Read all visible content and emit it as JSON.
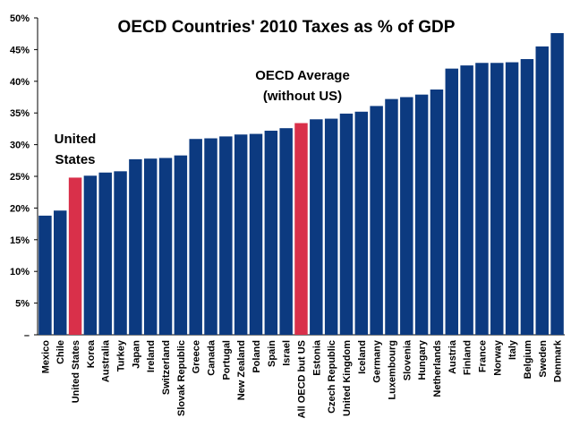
{
  "chart_data": {
    "type": "bar",
    "title": "OECD Countries' 2010 Taxes as % of GDP",
    "xlabel": "",
    "ylabel": "",
    "ylim": [
      0,
      50
    ],
    "y_ticks": [
      "–",
      "5%",
      "10%",
      "15%",
      "20%",
      "25%",
      "30%",
      "35%",
      "40%",
      "45%",
      "50%"
    ],
    "grid": false,
    "colors": {
      "default": "#0c3a80",
      "highlight": "#d9304a"
    },
    "highlighted": [
      "United States",
      "All OECD but US"
    ],
    "categories": [
      "Mexico",
      "Chile",
      "United States",
      "Korea",
      "Australia",
      "Turkey",
      "Japan",
      "Ireland",
      "Switzerland",
      "Slovak Republic",
      "Greece",
      "Canada",
      "Portugal",
      "New Zealand",
      "Poland",
      "Spain",
      "Israel",
      "All OECD but US",
      "Estonia",
      "Czech Republic",
      "United Kingdom",
      "Iceland",
      "Germany",
      "Luxembourg",
      "Slovenia",
      "Hungary",
      "Netherlands",
      "Austria",
      "Finland",
      "France",
      "Norway",
      "Italy",
      "Belgium",
      "Sweden",
      "Denmark"
    ],
    "values": [
      18.8,
      19.6,
      24.8,
      25.1,
      25.6,
      25.8,
      27.7,
      27.8,
      27.9,
      28.3,
      30.9,
      31.0,
      31.3,
      31.6,
      31.7,
      32.2,
      32.6,
      33.4,
      34.0,
      34.1,
      34.9,
      35.2,
      36.1,
      37.2,
      37.5,
      37.9,
      38.7,
      42.0,
      42.5,
      42.9,
      42.9,
      43.0,
      43.5,
      45.5,
      47.6
    ],
    "annotations": {
      "us_line1": "United",
      "us_line2": "States",
      "avg_line1": "OECD Average",
      "avg_line2": "(without US)"
    }
  }
}
